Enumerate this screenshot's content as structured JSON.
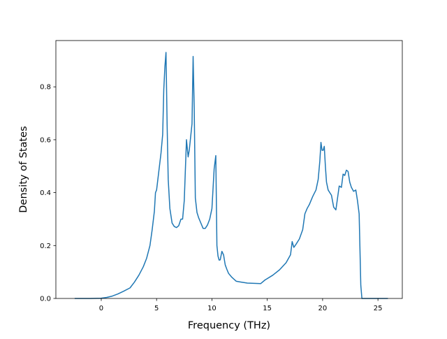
{
  "chart_data": {
    "type": "line",
    "title": "",
    "xlabel": "Frequency (THz)",
    "ylabel": "Density of States",
    "xlim": [
      -4.1,
      27.2
    ],
    "ylim": [
      0,
      0.975
    ],
    "xticks": [
      0,
      5,
      10,
      15,
      20,
      25
    ],
    "yticks": [
      0.0,
      0.2,
      0.4,
      0.6,
      0.8
    ],
    "xtick_labels": [
      "0",
      "5",
      "10",
      "15",
      "20",
      "25"
    ],
    "ytick_labels": [
      "0.0",
      "0.2",
      "0.4",
      "0.6",
      "0.8"
    ],
    "grid": false,
    "legend": "none",
    "line_color": "#1f77b4",
    "series": [
      {
        "x": [
          -2.4,
          -1.0,
          0.0,
          0.5,
          1.0,
          1.5,
          2.0,
          2.6,
          3.0,
          3.4,
          3.8,
          4.1,
          4.4,
          4.6,
          4.8,
          4.9,
          5.0,
          5.2,
          5.4,
          5.55,
          5.65,
          5.75,
          5.85,
          5.95,
          6.05,
          6.2,
          6.4,
          6.6,
          6.8,
          7.0,
          7.2,
          7.35,
          7.5,
          7.7,
          7.85,
          7.95,
          8.05,
          8.2,
          8.3,
          8.4,
          8.5,
          8.65,
          8.8,
          9.0,
          9.2,
          9.4,
          9.6,
          9.8,
          10.0,
          10.2,
          10.35,
          10.45,
          10.55,
          10.65,
          10.75,
          10.9,
          11.05,
          11.2,
          11.35,
          11.5,
          11.8,
          12.2,
          12.6,
          13.2,
          13.8,
          14.4,
          14.8,
          15.5,
          16.1,
          16.7,
          17.1,
          17.25,
          17.4,
          17.6,
          17.9,
          18.2,
          18.4,
          18.6,
          18.8,
          19.1,
          19.4,
          19.6,
          19.75,
          19.85,
          19.95,
          20.05,
          20.15,
          20.25,
          20.35,
          20.5,
          20.65,
          20.8,
          21.0,
          21.2,
          21.35,
          21.5,
          21.7,
          21.85,
          22.0,
          22.15,
          22.3,
          22.45,
          22.6,
          22.8,
          23.0,
          23.15,
          23.3,
          23.45,
          23.55,
          23.7,
          24.2,
          25.0,
          25.9
        ],
        "y": [
          0.0,
          0.0,
          0.001,
          0.004,
          0.009,
          0.017,
          0.027,
          0.04,
          0.062,
          0.088,
          0.12,
          0.152,
          0.2,
          0.26,
          0.33,
          0.4,
          0.41,
          0.48,
          0.55,
          0.62,
          0.79,
          0.875,
          0.93,
          0.66,
          0.45,
          0.34,
          0.285,
          0.272,
          0.268,
          0.275,
          0.3,
          0.3,
          0.37,
          0.6,
          0.535,
          0.56,
          0.6,
          0.66,
          0.915,
          0.72,
          0.38,
          0.325,
          0.305,
          0.285,
          0.265,
          0.265,
          0.278,
          0.3,
          0.34,
          0.49,
          0.54,
          0.2,
          0.16,
          0.145,
          0.146,
          0.178,
          0.165,
          0.127,
          0.11,
          0.095,
          0.08,
          0.065,
          0.062,
          0.058,
          0.057,
          0.056,
          0.07,
          0.088,
          0.108,
          0.135,
          0.165,
          0.215,
          0.193,
          0.205,
          0.225,
          0.26,
          0.32,
          0.34,
          0.355,
          0.385,
          0.41,
          0.45,
          0.52,
          0.59,
          0.56,
          0.56,
          0.575,
          0.5,
          0.44,
          0.41,
          0.4,
          0.39,
          0.345,
          0.335,
          0.38,
          0.425,
          0.42,
          0.47,
          0.465,
          0.485,
          0.48,
          0.44,
          0.42,
          0.405,
          0.41,
          0.37,
          0.32,
          0.05,
          0.0,
          0.0,
          0.0,
          0.0,
          0.0
        ]
      }
    ]
  }
}
